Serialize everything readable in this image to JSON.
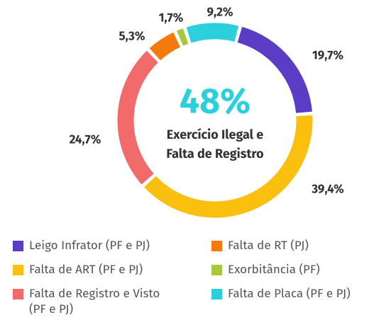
{
  "chart_data": {
    "type": "donut",
    "center_value": "48%",
    "center_label": [
      "Exercício Ilegal e",
      "Falta de Registro"
    ],
    "categories": [
      "Leigo Infrator (PF e PJ)",
      "Falta de ART (PF e PJ)",
      "Falta de Registro e Visto (PF e PJ)",
      "Falta de RT (PJ)",
      "Exorbitância (PF)",
      "Falta de Placa (PF e PJ)"
    ],
    "values": [
      19.7,
      39.4,
      24.7,
      5.3,
      1.7,
      9.2
    ],
    "value_labels": [
      "19,7%",
      "39,4%",
      "24,7%",
      "5,3%",
      "1,7%",
      "9,2%"
    ],
    "colors": [
      "#5b3cc4",
      "#fbbf0f",
      "#f26b6b",
      "#f47b0b",
      "#a8c83c",
      "#2ccfdc"
    ]
  }
}
